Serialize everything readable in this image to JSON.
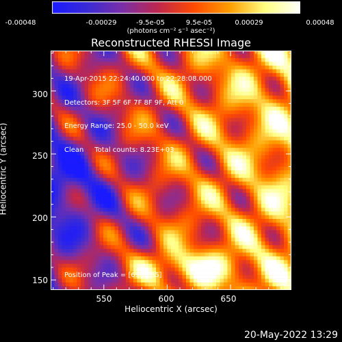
{
  "colorbar": {
    "units": "(photons cm⁻² s⁻¹ asec⁻²)",
    "ticks": [
      "-0.00048",
      "-0.00029",
      "-9.5e-05",
      "9.5e-05",
      "0.00029",
      "0.00048"
    ],
    "range": [
      -0.00048,
      0.00048
    ],
    "colors": [
      "#1a1aff",
      "#3b2bd6",
      "#7b2fa6",
      "#c0274d",
      "#ff4a00",
      "#ff9d00",
      "#ffff80",
      "#ffffff"
    ]
  },
  "chart_data": {
    "type": "heatmap",
    "title": "Reconstructed RHESSI Image",
    "xlabel": "Heliocentric X (arcsec)",
    "ylabel": "Heliocentric Y (arcsec)",
    "xlim": [
      508,
      698
    ],
    "ylim": [
      142,
      332
    ],
    "xticks": [
      "550",
      "600",
      "650"
    ],
    "yticks": [
      "150",
      "200",
      "250",
      "300"
    ],
    "annotations": [
      "19-Apr-2015 22:24:40.000 to 22:28:08.000",
      "Detectors: 3F 5F 6F 7F 8F 9F, Att 0",
      "Energy Range: 25.0 - 50.0 keV",
      "Clean     Total counts: 8.23E+03"
    ],
    "peak_label": "Position of Peak = [690,285]"
  },
  "footer": {
    "timestamp": "20-May-2022 13:29"
  }
}
